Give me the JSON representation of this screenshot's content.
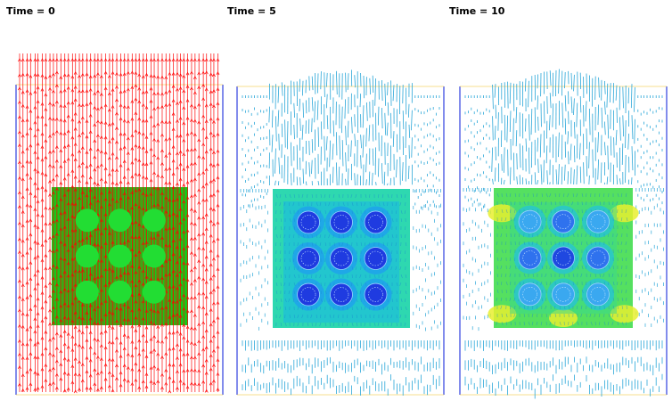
{
  "panels": [
    {
      "label": "Time = 0",
      "mode": "initial",
      "block_color": "#18c818",
      "vector_color": "#ff0000",
      "circle_color": "#22dd33"
    },
    {
      "label": "Time = 5",
      "mode": "mid",
      "block_color": "#2ed8b0",
      "vector_color": "#29a6d8",
      "circle_color": "#1f3be0"
    },
    {
      "label": "Time = 10",
      "mode": "late",
      "block_color": "#55e060",
      "vector_color": "#29a6d8",
      "circle_color": "#2f72ee"
    }
  ],
  "colors": {
    "wall": "#3040e0",
    "top_line": "#f0c020",
    "background": "#ffffff"
  }
}
